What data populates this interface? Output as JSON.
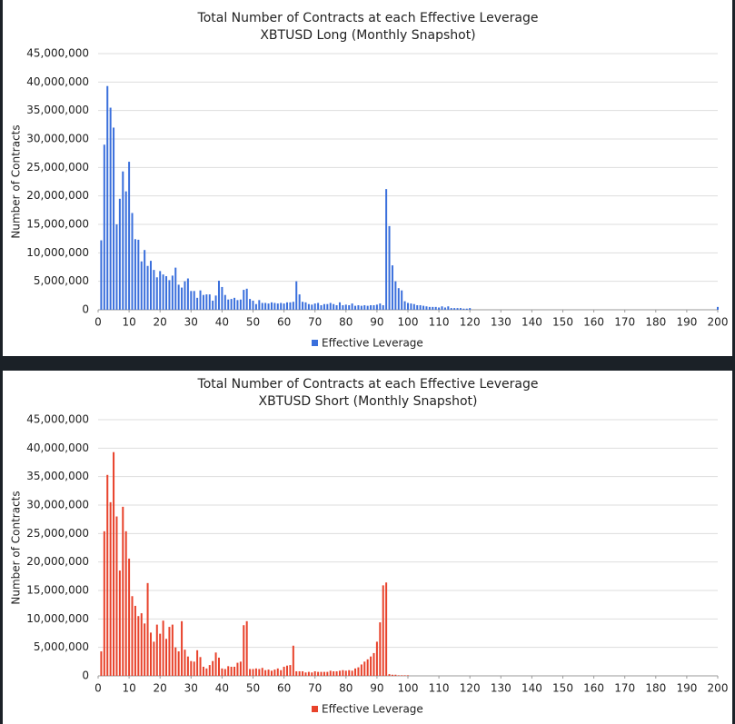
{
  "chart_data": [
    {
      "type": "bar",
      "title": "Total Number of Contracts at each Effective Leverage",
      "subtitle": "XBTUSD Long (Monthly Snapshot)",
      "y_label": "Number of Contracts",
      "x": [
        1,
        2,
        3,
        4,
        5,
        6,
        7,
        8,
        9,
        10,
        11,
        12,
        13,
        14,
        15,
        16,
        17,
        18,
        19,
        20,
        21,
        22,
        23,
        24,
        25,
        26,
        27,
        28,
        29,
        30,
        31,
        32,
        33,
        34,
        35,
        36,
        37,
        38,
        39,
        40,
        41,
        42,
        43,
        44,
        45,
        46,
        47,
        48,
        49,
        50,
        51,
        52,
        53,
        54,
        55,
        56,
        57,
        58,
        59,
        60,
        61,
        62,
        63,
        64,
        65,
        66,
        67,
        68,
        69,
        70,
        71,
        72,
        73,
        74,
        75,
        76,
        77,
        78,
        79,
        80,
        81,
        82,
        83,
        84,
        85,
        86,
        87,
        88,
        89,
        90,
        91,
        92,
        93,
        94,
        95,
        96,
        97,
        98,
        99,
        100,
        101,
        102,
        103,
        104,
        105,
        106,
        107,
        108,
        109,
        110,
        111,
        112,
        113,
        114,
        115,
        116,
        117,
        118,
        119,
        120,
        200
      ],
      "series": [
        {
          "name": "Effective Leverage",
          "color": "#3a6fdc",
          "values": [
            12200000,
            29000000,
            39300000,
            35500000,
            32000000,
            15000000,
            19500000,
            24300000,
            20800000,
            26000000,
            17000000,
            12400000,
            12300000,
            8500000,
            10500000,
            7700000,
            8600000,
            7000000,
            5700000,
            6800000,
            6200000,
            5900000,
            5200000,
            6000000,
            7400000,
            4400000,
            3900000,
            5000000,
            5500000,
            3300000,
            3300000,
            2100000,
            3400000,
            2600000,
            2700000,
            2700000,
            1600000,
            2500000,
            5100000,
            4000000,
            2600000,
            1800000,
            1900000,
            2100000,
            1700000,
            1800000,
            3500000,
            3700000,
            1900000,
            1600000,
            1000000,
            1700000,
            1200000,
            1200000,
            1100000,
            1300000,
            1200000,
            1100000,
            1200000,
            1100000,
            1300000,
            1300000,
            1400000,
            5000000,
            2700000,
            1400000,
            1300000,
            1000000,
            900000,
            1100000,
            1200000,
            800000,
            1000000,
            1000000,
            1200000,
            1000000,
            800000,
            1300000,
            800000,
            900000,
            800000,
            1100000,
            700000,
            800000,
            700000,
            800000,
            700000,
            800000,
            800000,
            900000,
            1100000,
            800000,
            21200000,
            14700000,
            7800000,
            5000000,
            3800000,
            3400000,
            1500000,
            1200000,
            1100000,
            1000000,
            800000,
            800000,
            700000,
            600000,
            500000,
            500000,
            500000,
            400000,
            600000,
            400000,
            600000,
            300000,
            300000,
            300000,
            300000,
            200000,
            200000,
            300000,
            500000
          ]
        }
      ],
      "xlim": [
        0,
        200
      ],
      "xticks": [
        0,
        10,
        20,
        30,
        40,
        50,
        60,
        70,
        80,
        90,
        100,
        110,
        120,
        130,
        140,
        150,
        160,
        170,
        180,
        190,
        200
      ],
      "ylim": [
        0,
        45000000
      ],
      "yticks": [
        0,
        {
          "value": 5000000,
          "label": "5,000,000"
        },
        {
          "value": 10000000,
          "label": "10,000,000"
        },
        {
          "value": 15000000,
          "label": "15,000,000"
        },
        {
          "value": 20000000,
          "label": "20,000,000"
        },
        {
          "value": 25000000,
          "label": "25,000,000"
        },
        {
          "value": 30000000,
          "label": "30,000,000"
        },
        {
          "value": 35000000,
          "label": "35,000,000"
        },
        {
          "value": 40000000,
          "label": "40,000,000"
        },
        {
          "value": 45000000,
          "label": "45,000,000"
        }
      ],
      "grid": true,
      "legend": "bottom"
    },
    {
      "type": "bar",
      "title": "Total Number of Contracts at each Effective Leverage",
      "subtitle": "XBTUSD Short (Monthly Snapshot)",
      "y_label": "Number of Contracts",
      "x": [
        1,
        2,
        3,
        4,
        5,
        6,
        7,
        8,
        9,
        10,
        11,
        12,
        13,
        14,
        15,
        16,
        17,
        18,
        19,
        20,
        21,
        22,
        23,
        24,
        25,
        26,
        27,
        28,
        29,
        30,
        31,
        32,
        33,
        34,
        35,
        36,
        37,
        38,
        39,
        40,
        41,
        42,
        43,
        44,
        45,
        46,
        47,
        48,
        49,
        50,
        51,
        52,
        53,
        54,
        55,
        56,
        57,
        58,
        59,
        60,
        61,
        62,
        63,
        64,
        65,
        66,
        67,
        68,
        69,
        70,
        71,
        72,
        73,
        74,
        75,
        76,
        77,
        78,
        79,
        80,
        81,
        82,
        83,
        84,
        85,
        86,
        87,
        88,
        89,
        90,
        91,
        92,
        93,
        94,
        95,
        96,
        97,
        98,
        99,
        100
      ],
      "series": [
        {
          "name": "Effective Leverage",
          "color": "#e8422b",
          "values": [
            4300000,
            25400000,
            35300000,
            30500000,
            39300000,
            28000000,
            18500000,
            29700000,
            25400000,
            20600000,
            14000000,
            12300000,
            10500000,
            11000000,
            9200000,
            16300000,
            7600000,
            6000000,
            9000000,
            7400000,
            9700000,
            6500000,
            8600000,
            9000000,
            5000000,
            4300000,
            9600000,
            4600000,
            3400000,
            2600000,
            2500000,
            4500000,
            3300000,
            1600000,
            1300000,
            1900000,
            2600000,
            4100000,
            3200000,
            1300000,
            1200000,
            1700000,
            1600000,
            1600000,
            2300000,
            2500000,
            8900000,
            9600000,
            1200000,
            1200000,
            1300000,
            1200000,
            1400000,
            1000000,
            1100000,
            900000,
            1100000,
            1300000,
            1000000,
            1600000,
            1800000,
            1900000,
            5300000,
            800000,
            800000,
            800000,
            600000,
            700000,
            600000,
            800000,
            700000,
            700000,
            700000,
            700000,
            900000,
            800000,
            800000,
            900000,
            1000000,
            900000,
            1000000,
            900000,
            1300000,
            1500000,
            2000000,
            2500000,
            2900000,
            3400000,
            4000000,
            6000000,
            9400000,
            15900000,
            16400000,
            300000,
            200000,
            200000,
            100000,
            100000,
            100000,
            100000
          ]
        }
      ],
      "xlim": [
        0,
        200
      ],
      "xticks": [
        0,
        10,
        20,
        30,
        40,
        50,
        60,
        70,
        80,
        90,
        100,
        110,
        120,
        130,
        140,
        150,
        160,
        170,
        180,
        190,
        200
      ],
      "ylim": [
        0,
        45000000
      ],
      "yticks": [
        0,
        {
          "value": 5000000,
          "label": "5,000,000"
        },
        {
          "value": 10000000,
          "label": "10,000,000"
        },
        {
          "value": 15000000,
          "label": "15,000,000"
        },
        {
          "value": 20000000,
          "label": "20,000,000"
        },
        {
          "value": 25000000,
          "label": "25,000,000"
        },
        {
          "value": 30000000,
          "label": "30,000,000"
        },
        {
          "value": 35000000,
          "label": "35,000,000"
        },
        {
          "value": 40000000,
          "label": "40,000,000"
        },
        {
          "value": 45000000,
          "label": "45,000,000"
        }
      ],
      "grid": true,
      "legend": "bottom"
    }
  ]
}
